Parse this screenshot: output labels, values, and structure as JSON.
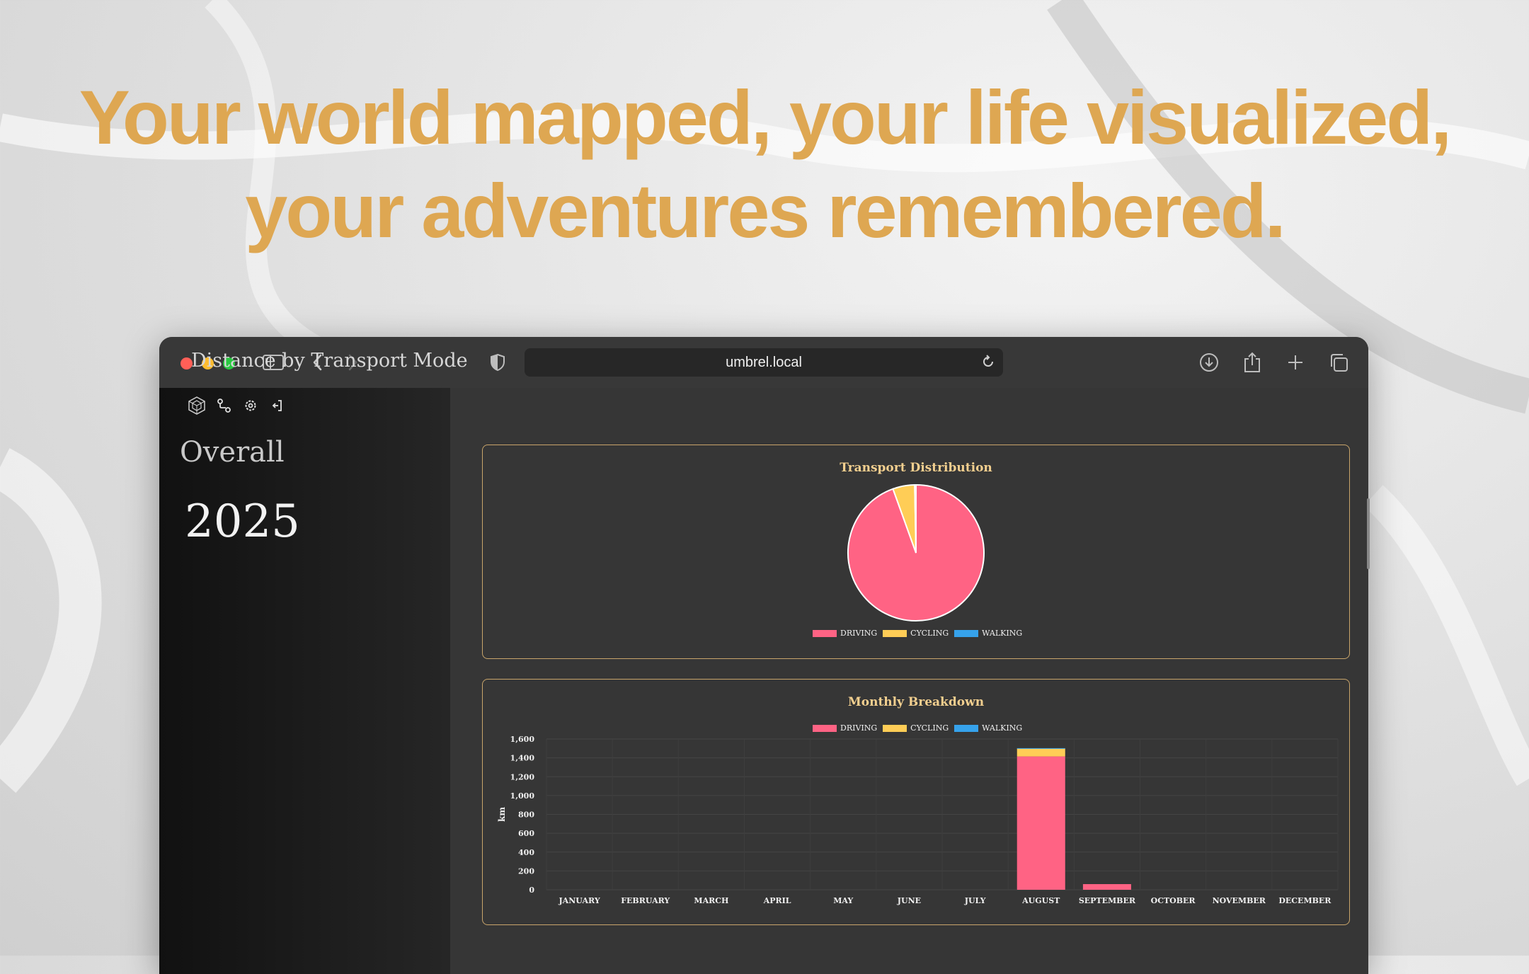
{
  "headline": {
    "line1": "Your world mapped, your life visualized,",
    "line2": "your adventures remembered."
  },
  "browser": {
    "url": "umbrel.local",
    "icons": [
      "sidebar-toggle-icon",
      "back-icon",
      "forward-icon",
      "privacy-shield-icon",
      "reload-icon",
      "download-icon",
      "share-icon",
      "new-tab-icon",
      "tabs-overview-icon"
    ]
  },
  "sidebar": {
    "icons": [
      "logo-icon",
      "route-icon",
      "gear-icon",
      "logout-icon"
    ],
    "overall_label": "Overall",
    "year": "2025"
  },
  "main": {
    "section_title": "Distance by Transport Mode"
  },
  "colors": {
    "accent": "#dea752",
    "driving": "#ff6384",
    "cycling": "#ffcd56",
    "walking": "#36a2eb",
    "card_border": "#c9a56b",
    "card_title": "#f2cf8f"
  },
  "chart_data": [
    {
      "type": "pie",
      "title": "Transport Distribution",
      "labels": [
        "DRIVING",
        "CYCLING",
        "WALKING"
      ],
      "values": [
        94.5,
        5.2,
        0.3
      ],
      "legend": "bottom"
    },
    {
      "type": "bar",
      "stacked": true,
      "title": "Monthly Breakdown",
      "categories": [
        "JANUARY",
        "FEBRUARY",
        "MARCH",
        "APRIL",
        "MAY",
        "JUNE",
        "JULY",
        "AUGUST",
        "SEPTEMBER",
        "OCTOBER",
        "NOVEMBER",
        "DECEMBER"
      ],
      "series": [
        {
          "name": "DRIVING",
          "values": [
            0,
            0,
            0,
            0,
            0,
            0,
            0,
            1415,
            60,
            0,
            0,
            0
          ]
        },
        {
          "name": "CYCLING",
          "values": [
            0,
            0,
            0,
            0,
            0,
            0,
            0,
            85,
            0,
            0,
            0,
            0
          ]
        },
        {
          "name": "WALKING",
          "values": [
            0,
            0,
            0,
            0,
            0,
            0,
            0,
            3,
            0,
            0,
            0,
            0
          ]
        }
      ],
      "ylabel": "km",
      "ylim": [
        0,
        1600
      ],
      "yticks": [
        "0",
        "200",
        "400",
        "600",
        "800",
        "1,000",
        "1,200",
        "1,400",
        "1,600"
      ],
      "grid": true,
      "legend": "top"
    }
  ]
}
